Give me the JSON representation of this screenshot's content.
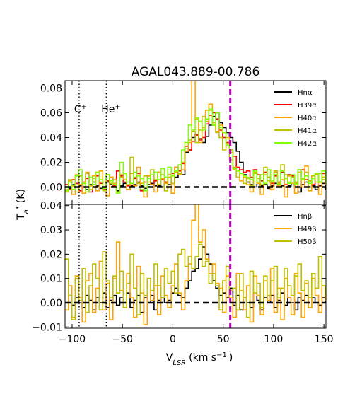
{
  "chart_data": [
    {
      "type": "line",
      "title": "AGAL043.889-00.786",
      "xlabel": "V",
      "xlabel_sub": "LSR",
      "xlabel_unit": "(km s",
      "xlabel_unit_sup": "−1",
      "xlabel_unit_end": ")",
      "ylabel": "T",
      "ylabel_sub": "a",
      "ylabel_sup": "*",
      "ylabel_unit": "(K)",
      "xlim": [
        -107,
        152
      ],
      "ylim": [
        -0.014,
        0.086
      ],
      "xticks": [
        -100,
        -50,
        0,
        50,
        100,
        150
      ],
      "xtick_labels": [
        "−100",
        "−50",
        "0",
        "50",
        "100",
        "150"
      ],
      "yticks": [
        0.0,
        0.02,
        0.04,
        0.06,
        0.08
      ],
      "ytick_labels": [
        "0.00",
        "0.02",
        "0.04",
        "0.06",
        "0.08"
      ],
      "grid": false,
      "legend_position": "top-right",
      "annotations": [
        {
          "text": "C",
          "sup": "+",
          "x": -98
        },
        {
          "text": "He",
          "sup": "+",
          "x": -71
        }
      ],
      "vline_dotted_x": [
        -93,
        -66
      ],
      "vline_dashed_x": 57,
      "hline_dashed_y": 0,
      "series": [
        {
          "name": "Hnα",
          "color": "#000000",
          "y": [
            0.0,
            -0.001,
            0.002,
            0.003,
            0.001,
            0.0,
            -0.002,
            0.002,
            0.004,
            0.001,
            -0.001,
            0.0,
            0.004,
            0.002,
            0.0,
            -0.003,
            0.001,
            0.003,
            -0.002,
            0.001,
            0.002,
            0.004,
            0.001,
            -0.001,
            0.002,
            0.003,
            0.001,
            0.001,
            0.0,
            0.004,
            0.002,
            0.003,
            0.008,
            0.011,
            0.01,
            0.028,
            0.03,
            0.04,
            0.042,
            0.039,
            0.036,
            0.041,
            0.05,
            0.057,
            0.06,
            0.052,
            0.048,
            0.044,
            0.04,
            0.036,
            0.029,
            0.02,
            0.01,
            0.004,
            0.002,
            0.0,
            0.003,
            0.001,
            0.002,
            -0.001,
            0.001,
            0.003,
            0.002,
            0.001,
            0.0,
            0.001,
            0.003,
            0.0,
            -0.004,
            0.002,
            0.004,
            0.0,
            0.001,
            -0.002,
            0.001,
            0.003,
            -0.002
          ]
        },
        {
          "name": "H39α",
          "color": "#ff0000",
          "y": [
            0.002,
            -0.002,
            0.006,
            0.003,
            -0.003,
            0.004,
            0.007,
            -0.004,
            0.002,
            0.009,
            0.003,
            -0.002,
            0.005,
            0.008,
            0.001,
            0.013,
            0.009,
            0.004,
            0.001,
            0.003,
            0.007,
            0.011,
            -0.003,
            0.004,
            0.009,
            0.002,
            0.005,
            0.012,
            0.006,
            0.004,
            0.01,
            0.011,
            0.016,
            0.013,
            0.019,
            0.033,
            0.03,
            0.037,
            0.042,
            0.038,
            0.04,
            0.051,
            0.058,
            0.06,
            0.055,
            0.046,
            0.04,
            0.036,
            0.03,
            0.025,
            0.016,
            0.014,
            0.012,
            0.013,
            0.008,
            0.014,
            0.01,
            0.005,
            0.012,
            0.008,
            0.003,
            0.009,
            0.004,
            0.012,
            0.002,
            0.01,
            0.009,
            0.004,
            0.0,
            0.014,
            0.006,
            0.005,
            0.002,
            0.01,
            0.004,
            0.011,
            0.005
          ]
        },
        {
          "name": "H40α",
          "color": "#ffa500",
          "y": [
            -0.004,
            0.005,
            -0.006,
            0.01,
            0.002,
            -0.005,
            0.012,
            0.001,
            0.009,
            -0.003,
            0.013,
            0.004,
            -0.007,
            0.008,
            0.003,
            -0.005,
            0.01,
            0.006,
            -0.002,
            0.011,
            0.001,
            0.016,
            0.003,
            -0.008,
            0.009,
            0.002,
            -0.004,
            0.012,
            0.007,
            0.003,
            0.01,
            -0.005,
            0.016,
            0.01,
            0.014,
            0.029,
            0.036,
            0.092,
            0.055,
            0.036,
            0.048,
            0.062,
            0.067,
            0.052,
            0.045,
            0.05,
            0.044,
            0.04,
            0.028,
            0.016,
            0.013,
            0.005,
            0.008,
            0.002,
            -0.004,
            0.012,
            0.003,
            -0.006,
            0.01,
            0.005,
            -0.002,
            0.012,
            0.001,
            0.006,
            -0.008,
            0.009,
            0.003,
            -0.005,
            0.012,
            0.0,
            0.017,
            -0.003,
            0.007,
            0.01,
            -0.006,
            0.008,
            0.002
          ]
        },
        {
          "name": "H41α",
          "color": "#bfbf00",
          "y": [
            -0.002,
            0.006,
            0.001,
            -0.004,
            0.009,
            0.003,
            0.011,
            -0.002,
            0.007,
            0.012,
            0.004,
            -0.003,
            0.01,
            0.003,
            0.006,
            -0.004,
            0.008,
            0.011,
            0.002,
            0.024,
            0.008,
            0.003,
            -0.002,
            0.009,
            0.004,
            0.014,
            0.006,
            0.002,
            0.01,
            -0.003,
            0.008,
            0.003,
            0.012,
            0.011,
            0.02,
            0.031,
            0.038,
            0.045,
            0.036,
            0.046,
            0.057,
            0.053,
            0.062,
            0.05,
            0.044,
            0.04,
            0.03,
            0.035,
            0.022,
            0.014,
            0.008,
            0.011,
            0.003,
            0.007,
            0.001,
            0.011,
            0.007,
            0.002,
            0.016,
            0.008,
            0.004,
            0.013,
            0.003,
            0.018,
            0.01,
            0.004,
            0.008,
            0.003,
            0.014,
            0.007,
            0.012,
            0.005,
            0.009,
            0.004,
            0.011,
            0.006,
            0.003
          ]
        },
        {
          "name": "H42α",
          "color": "#7fff00",
          "y": [
            -0.003,
            0.004,
            -0.002,
            0.009,
            0.014,
            0.003,
            -0.004,
            0.008,
            0.002,
            0.012,
            0.006,
            -0.001,
            0.01,
            0.005,
            0.002,
            -0.005,
            0.02,
            0.011,
            0.004,
            0.003,
            0.012,
            0.009,
            0.007,
            -0.003,
            0.007,
            0.01,
            0.012,
            0.006,
            0.015,
            0.008,
            0.016,
            0.009,
            0.013,
            0.018,
            0.03,
            0.036,
            0.05,
            0.046,
            0.056,
            0.053,
            0.046,
            0.055,
            0.063,
            0.05,
            0.06,
            0.048,
            0.044,
            0.034,
            0.03,
            0.015,
            0.013,
            0.011,
            0.009,
            0.008,
            0.006,
            0.013,
            0.004,
            0.01,
            0.003,
            0.014,
            0.005,
            0.01,
            0.002,
            0.013,
            0.007,
            0.003,
            0.01,
            0.002,
            0.014,
            0.006,
            0.009,
            0.003,
            0.007,
            0.011,
            0.004,
            0.013,
            0.005
          ]
        }
      ]
    },
    {
      "type": "line",
      "xlim": [
        -107,
        152
      ],
      "ylim": [
        -0.0105,
        0.0405
      ],
      "yticks": [
        -0.01,
        0.0,
        0.01,
        0.02,
        0.03,
        0.04
      ],
      "ytick_labels": [
        "−0.01",
        "0.00",
        "0.01",
        "0.02",
        "0.03",
        "0.04"
      ],
      "grid": false,
      "legend_position": "top-right",
      "vline_dotted_x": [
        -93,
        -66
      ],
      "vline_dashed_x": 57,
      "hline_dashed_y": 0,
      "series": [
        {
          "name": "Hnβ",
          "color": "#000000",
          "y": [
            0.0,
            0.003,
            -0.001,
            0.002,
            0.0,
            -0.002,
            0.003,
            0.001,
            -0.003,
            0.002,
            0.0,
            0.004,
            -0.002,
            0.001,
            0.003,
            -0.001,
            0.002,
            0.0,
            0.004,
            -0.002,
            0.001,
            0.003,
            -0.004,
            0.002,
            0.0,
            0.003,
            -0.003,
            0.001,
            0.002,
            0.0,
            0.001,
            0.004,
            0.006,
            0.003,
            0.002,
            0.006,
            0.009,
            0.013,
            0.014,
            0.018,
            0.023,
            0.02,
            0.016,
            0.009,
            0.006,
            0.003,
            0.004,
            0.002,
            0.006,
            -0.001,
            0.003,
            -0.003,
            0.002,
            0.0,
            -0.002,
            0.004,
            0.001,
            -0.003,
            0.002,
            0.0,
            0.003,
            -0.002,
            0.001,
            0.004,
            -0.001,
            0.002,
            0.0,
            -0.003,
            0.002,
            0.001,
            0.003,
            -0.002,
            0.002,
            0.0,
            -0.001,
            0.002,
            0.0
          ]
        },
        {
          "name": "H49β",
          "color": "#ffa500",
          "y": [
            -0.003,
            0.007,
            -0.006,
            0.011,
            0.002,
            -0.008,
            0.009,
            0.012,
            -0.004,
            0.006,
            0.017,
            -0.003,
            0.008,
            -0.007,
            0.01,
            0.025,
            0.005,
            -0.002,
            0.012,
            0.002,
            -0.006,
            0.015,
            0.004,
            -0.009,
            0.01,
            0.001,
            0.007,
            -0.005,
            0.011,
            0.003,
            -0.002,
            0.007,
            0.016,
            0.004,
            -0.003,
            0.009,
            0.016,
            0.034,
            0.041,
            0.025,
            0.03,
            0.018,
            0.012,
            0.016,
            0.008,
            0.006,
            -0.004,
            0.011,
            0.002,
            -0.006,
            0.012,
            0.005,
            -0.003,
            0.007,
            -0.008,
            0.011,
            0.003,
            -0.005,
            0.009,
            0.001,
            0.014,
            -0.004,
            0.006,
            -0.007,
            0.01,
            0.002,
            -0.005,
            0.012,
            0.004,
            -0.006,
            0.008,
            -0.002,
            0.01,
            0.003,
            -0.004,
            0.007,
            0.001
          ]
        },
        {
          "name": "H50β",
          "color": "#bfbf00",
          "y": [
            0.018,
            0.003,
            -0.007,
            0.01,
            0.001,
            0.014,
            -0.004,
            0.007,
            0.016,
            0.01,
            -0.003,
            0.021,
            0.009,
            0.002,
            0.011,
            0.004,
            0.013,
            -0.002,
            0.008,
            0.02,
            0.006,
            -0.005,
            0.012,
            0.003,
            0.01,
            0.005,
            0.016,
            0.007,
            0.002,
            0.014,
            0.008,
            0.013,
            0.004,
            0.02,
            0.022,
            0.015,
            0.019,
            0.014,
            0.019,
            0.024,
            0.015,
            0.017,
            0.008,
            0.012,
            0.007,
            -0.003,
            0.009,
            0.015,
            0.005,
            0.006,
            -0.003,
            0.012,
            0.002,
            -0.006,
            0.013,
            0.004,
            0.008,
            -0.002,
            0.011,
            0.003,
            0.009,
            0.015,
            0.002,
            0.006,
            0.014,
            0.007,
            0.003,
            0.011,
            0.016,
            0.005,
            0.009,
            0.002,
            0.012,
            0.006,
            0.019,
            0.007,
            0.003
          ]
        }
      ]
    }
  ]
}
